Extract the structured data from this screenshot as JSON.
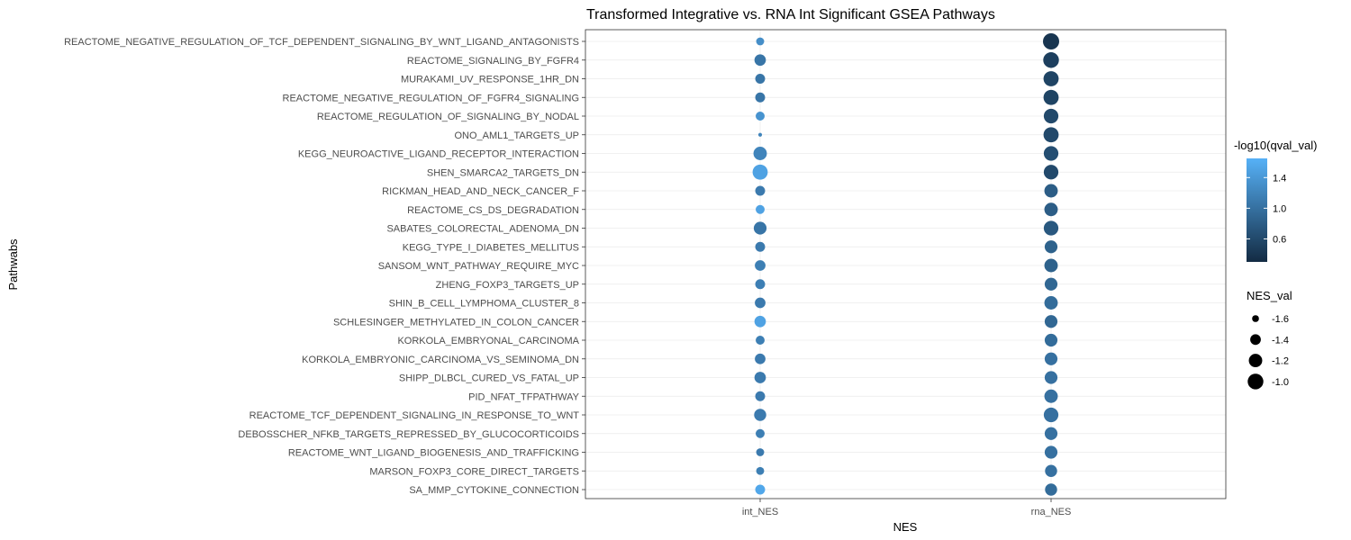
{
  "chart_data": {
    "type": "scatter",
    "title": "Transformed Integrative vs. RNA Int Significant GSEA Pathways",
    "xlabel": "NES",
    "ylabel": "Pathwabs",
    "x_categories": [
      "int_NES",
      "rna_NES"
    ],
    "pathways": [
      "REACTOME_NEGATIVE_REGULATION_OF_TCF_DEPENDENT_SIGNALING_BY_WNT_LIGAND_ANTAGONISTS",
      "REACTOME_SIGNALING_BY_FGFR4",
      "MURAKAMI_UV_RESPONSE_1HR_DN",
      "REACTOME_NEGATIVE_REGULATION_OF_FGFR4_SIGNALING",
      "REACTOME_REGULATION_OF_SIGNALING_BY_NODAL",
      "ONO_AML1_TARGETS_UP",
      "KEGG_NEUROACTIVE_LIGAND_RECEPTOR_INTERACTION",
      "SHEN_SMARCA2_TARGETS_DN",
      "RICKMAN_HEAD_AND_NECK_CANCER_F",
      "REACTOME_CS_DS_DEGRADATION",
      "SABATES_COLORECTAL_ADENOMA_DN",
      "KEGG_TYPE_I_DIABETES_MELLITUS",
      "SANSOM_WNT_PATHWAY_REQUIRE_MYC",
      "ZHENG_FOXP3_TARGETS_UP",
      "SHIN_B_CELL_LYMPHOMA_CLUSTER_8",
      "SCHLESINGER_METHYLATED_IN_COLON_CANCER",
      "KORKOLA_EMBRYONAL_CARCINOMA",
      "KORKOLA_EMBRYONIC_CARCINOMA_VS_SEMINOMA_DN",
      "SHIPP_DLBCL_CURED_VS_FATAL_UP",
      "PID_NFAT_TFPATHWAY",
      "REACTOME_TCF_DEPENDENT_SIGNALING_IN_RESPONSE_TO_WNT",
      "DEBOSSCHER_NFKB_TARGETS_REPRESSED_BY_GLUCOCORTICOIDS",
      "REACTOME_WNT_LIGAND_BIOGENESIS_AND_TRAFFICKING",
      "MARSON_FOXP3_CORE_DIRECT_TARGETS",
      "SA_MMP_CYTOKINE_CONNECTION"
    ],
    "series": [
      {
        "x_category": "int_NES",
        "NES_val": [
          -1.55,
          -1.35,
          -1.45,
          -1.45,
          -1.5,
          -1.7,
          -1.2,
          -1.05,
          -1.45,
          -1.5,
          -1.25,
          -1.45,
          -1.4,
          -1.45,
          -1.4,
          -1.35,
          -1.5,
          -1.4,
          -1.35,
          -1.45,
          -1.3,
          -1.5,
          -1.55,
          -1.55,
          -1.45
        ],
        "neg_log10_qval": [
          1.3,
          1.05,
          1.05,
          1.05,
          1.35,
          1.2,
          1.2,
          1.5,
          1.1,
          1.5,
          1.05,
          1.1,
          1.15,
          1.15,
          1.1,
          1.5,
          1.15,
          1.1,
          1.1,
          1.1,
          1.1,
          1.15,
          1.1,
          1.15,
          1.55
        ]
      },
      {
        "x_category": "rna_NES",
        "NES_val": [
          -0.95,
          -1.0,
          -1.05,
          -1.05,
          -1.1,
          -1.05,
          -1.1,
          -1.1,
          -1.2,
          -1.2,
          -1.1,
          -1.25,
          -1.2,
          -1.25,
          -1.2,
          -1.25,
          -1.25,
          -1.25,
          -1.25,
          -1.2,
          -1.1,
          -1.25,
          -1.25,
          -1.3,
          -1.3
        ],
        "neg_log10_qval": [
          0.4,
          0.5,
          0.55,
          0.55,
          0.6,
          0.6,
          0.65,
          0.6,
          0.8,
          0.8,
          0.75,
          0.85,
          0.85,
          0.9,
          0.95,
          0.9,
          0.95,
          1.0,
          1.0,
          1.0,
          1.0,
          1.0,
          1.0,
          1.0,
          0.95
        ]
      }
    ],
    "color_legend": {
      "title": "-log10(qval_val)",
      "ticks": [
        1.4,
        1.0,
        0.6
      ],
      "range": [
        0.3,
        1.65
      ],
      "low_color": "#132b43",
      "high_color": "#56b1f7"
    },
    "size_legend": {
      "title": "NES_val",
      "breaks": [
        -1.6,
        -1.4,
        -1.2,
        -1.0
      ],
      "range": [
        -1.72,
        -0.95
      ]
    },
    "legend_position": "right",
    "grid": true
  }
}
